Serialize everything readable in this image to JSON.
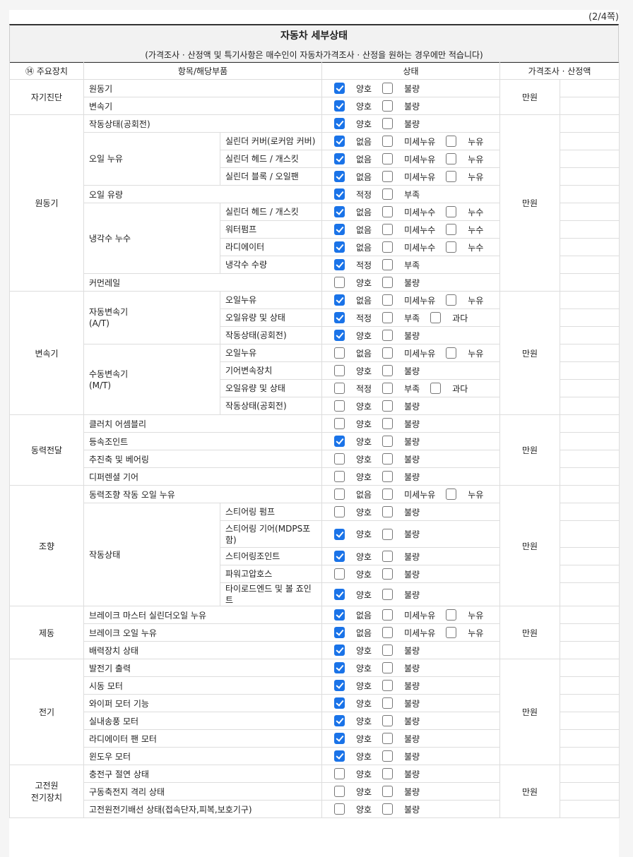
{
  "page_number": "(2/4쪽)",
  "title": "자동차 세부상태",
  "subtitle": "(가격조사 · 산정액 및 특기사항은 매수인이 자동차가격조사 · 산정을 원하는 경우에만 적습니다)",
  "headers": {
    "device": "⑭ 주요장치",
    "item": "항목/해당부품",
    "status": "상태",
    "price": "가격조사 · 산정액"
  },
  "colors": {
    "checked": "#1a73e8"
  },
  "sections": [
    {
      "name": "자기진단",
      "unit": "만원",
      "groups": [
        {
          "item": "원동기",
          "options": [
            [
              "양호",
              true
            ],
            [
              "불량",
              false
            ]
          ]
        },
        {
          "item": "변속기",
          "options": [
            [
              "양호",
              true
            ],
            [
              "불량",
              false
            ]
          ]
        }
      ]
    },
    {
      "name": "원동기",
      "unit": "만원",
      "groups": [
        {
          "item": "작동상태(공회전)",
          "options": [
            [
              "양호",
              true
            ],
            [
              "불량",
              false
            ]
          ]
        },
        {
          "item": "오일 누유",
          "subs": [
            {
              "sub": "실린더 커버(로커암 커버)",
              "options": [
                [
                  "없음",
                  true
                ],
                [
                  "미세누유",
                  false
                ],
                [
                  "누유",
                  false
                ]
              ]
            },
            {
              "sub": "실린더 헤드 / 개스킷",
              "options": [
                [
                  "없음",
                  true
                ],
                [
                  "미세누유",
                  false
                ],
                [
                  "누유",
                  false
                ]
              ]
            },
            {
              "sub": "실린더 블록 / 오일팬",
              "options": [
                [
                  "없음",
                  true
                ],
                [
                  "미세누유",
                  false
                ],
                [
                  "누유",
                  false
                ]
              ]
            }
          ]
        },
        {
          "item": "오일 유량",
          "options": [
            [
              "적정",
              true
            ],
            [
              "부족",
              false
            ]
          ]
        },
        {
          "item": "냉각수 누수",
          "subs": [
            {
              "sub": "실린더 헤드 / 개스킷",
              "options": [
                [
                  "없음",
                  true
                ],
                [
                  "미세누수",
                  false
                ],
                [
                  "누수",
                  false
                ]
              ]
            },
            {
              "sub": "워터펌프",
              "options": [
                [
                  "없음",
                  true
                ],
                [
                  "미세누수",
                  false
                ],
                [
                  "누수",
                  false
                ]
              ]
            },
            {
              "sub": "라디에이터",
              "options": [
                [
                  "없음",
                  true
                ],
                [
                  "미세누수",
                  false
                ],
                [
                  "누수",
                  false
                ]
              ]
            },
            {
              "sub": "냉각수 수량",
              "options": [
                [
                  "적정",
                  true
                ],
                [
                  "부족",
                  false
                ]
              ]
            }
          ]
        },
        {
          "item": "커먼레일",
          "options": [
            [
              "양호",
              false
            ],
            [
              "불량",
              false
            ]
          ]
        }
      ]
    },
    {
      "name": "변속기",
      "unit": "만원",
      "groups": [
        {
          "item": "자동변속기\n(A/T)",
          "subs": [
            {
              "sub": "오일누유",
              "options": [
                [
                  "없음",
                  true
                ],
                [
                  "미세누유",
                  false
                ],
                [
                  "누유",
                  false
                ]
              ]
            },
            {
              "sub": "오일유량 및 상태",
              "options": [
                [
                  "적정",
                  true
                ],
                [
                  "부족",
                  false
                ],
                [
                  "과다",
                  false
                ]
              ]
            },
            {
              "sub": "작동상태(공회전)",
              "options": [
                [
                  "양호",
                  true
                ],
                [
                  "불량",
                  false
                ]
              ]
            }
          ]
        },
        {
          "item": "수동변속기\n(M/T)",
          "subs": [
            {
              "sub": "오일누유",
              "options": [
                [
                  "없음",
                  false
                ],
                [
                  "미세누유",
                  false
                ],
                [
                  "누유",
                  false
                ]
              ]
            },
            {
              "sub": "기어변속장치",
              "options": [
                [
                  "양호",
                  false
                ],
                [
                  "불량",
                  false
                ]
              ]
            },
            {
              "sub": "오일유량 및 상태",
              "options": [
                [
                  "적정",
                  false
                ],
                [
                  "부족",
                  false
                ],
                [
                  "과다",
                  false
                ]
              ]
            },
            {
              "sub": "작동상태(공회전)",
              "options": [
                [
                  "양호",
                  false
                ],
                [
                  "불량",
                  false
                ]
              ]
            }
          ]
        }
      ]
    },
    {
      "name": "동력전달",
      "unit": "만원",
      "groups": [
        {
          "item": "클러치 어셈블리",
          "options": [
            [
              "양호",
              false
            ],
            [
              "불량",
              false
            ]
          ]
        },
        {
          "item": "등속조인트",
          "options": [
            [
              "양호",
              true
            ],
            [
              "불량",
              false
            ]
          ]
        },
        {
          "item": "추진축 및 베어링",
          "options": [
            [
              "양호",
              false
            ],
            [
              "불량",
              false
            ]
          ]
        },
        {
          "item": "디퍼렌셜 기어",
          "options": [
            [
              "양호",
              false
            ],
            [
              "불량",
              false
            ]
          ]
        }
      ]
    },
    {
      "name": "조향",
      "unit": "만원",
      "groups": [
        {
          "item": "동력조향 작동 오일 누유",
          "options": [
            [
              "없음",
              false
            ],
            [
              "미세누유",
              false
            ],
            [
              "누유",
              false
            ]
          ]
        },
        {
          "item": "작동상태",
          "subs": [
            {
              "sub": "스티어링 펌프",
              "options": [
                [
                  "양호",
                  false
                ],
                [
                  "불량",
                  false
                ]
              ]
            },
            {
              "sub": "스티어링 기어(MDPS포함)",
              "tall": true,
              "options": [
                [
                  "양호",
                  true
                ],
                [
                  "불량",
                  false
                ]
              ]
            },
            {
              "sub": "스티어링조인트",
              "options": [
                [
                  "양호",
                  true
                ],
                [
                  "불량",
                  false
                ]
              ]
            },
            {
              "sub": "파워고압호스",
              "options": [
                [
                  "양호",
                  false
                ],
                [
                  "불량",
                  false
                ]
              ]
            },
            {
              "sub": "타이로드엔드 및 볼 죠인트",
              "options": [
                [
                  "양호",
                  true
                ],
                [
                  "불량",
                  false
                ]
              ]
            }
          ]
        }
      ]
    },
    {
      "name": "제동",
      "unit": "만원",
      "groups": [
        {
          "item": "브레이크 마스터 실린더오일 누유",
          "options": [
            [
              "없음",
              true
            ],
            [
              "미세누유",
              false
            ],
            [
              "누유",
              false
            ]
          ]
        },
        {
          "item": "브레이크 오일 누유",
          "options": [
            [
              "없음",
              true
            ],
            [
              "미세누유",
              false
            ],
            [
              "누유",
              false
            ]
          ]
        },
        {
          "item": "배력장치 상태",
          "options": [
            [
              "양호",
              true
            ],
            [
              "불량",
              false
            ]
          ]
        }
      ]
    },
    {
      "name": "전기",
      "unit": "만원",
      "groups": [
        {
          "item": "발전기 출력",
          "options": [
            [
              "양호",
              true
            ],
            [
              "불량",
              false
            ]
          ]
        },
        {
          "item": "시동 모터",
          "options": [
            [
              "양호",
              true
            ],
            [
              "불량",
              false
            ]
          ]
        },
        {
          "item": "와이퍼 모터 기능",
          "options": [
            [
              "양호",
              true
            ],
            [
              "불량",
              false
            ]
          ]
        },
        {
          "item": "실내송풍 모터",
          "options": [
            [
              "양호",
              true
            ],
            [
              "불량",
              false
            ]
          ]
        },
        {
          "item": "라디에이터 팬 모터",
          "options": [
            [
              "양호",
              true
            ],
            [
              "불량",
              false
            ]
          ]
        },
        {
          "item": "윈도우 모터",
          "options": [
            [
              "양호",
              true
            ],
            [
              "불량",
              false
            ]
          ]
        }
      ]
    },
    {
      "name": "고전원\n전기장치",
      "unit": "만원",
      "groups": [
        {
          "item": "충전구 절연 상태",
          "options": [
            [
              "양호",
              false
            ],
            [
              "불량",
              false
            ]
          ]
        },
        {
          "item": "구동축전지 격리 상태",
          "options": [
            [
              "양호",
              false
            ],
            [
              "불량",
              false
            ]
          ]
        },
        {
          "item": "고전원전기배선 상태(접속단자,피복,보호기구)",
          "options": [
            [
              "양호",
              false
            ],
            [
              "불량",
              false
            ]
          ]
        }
      ]
    }
  ]
}
